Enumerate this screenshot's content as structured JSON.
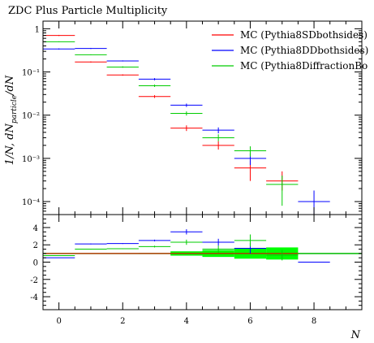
{
  "chart_data": {
    "type": "step-histogram-with-ratio",
    "title": "ZDC Plus Particle Multiplicity",
    "xlabel": "N",
    "ylabel": "1/N, dN_{particle}/dN",
    "ylabel_parts": {
      "main": "1/N, dN",
      "sub": "particle",
      "tail": "/dN"
    },
    "xlim": [
      -0.5,
      9.5
    ],
    "upper": {
      "yscale": "log",
      "ylim": [
        5e-05,
        1.5
      ],
      "yticks": [
        {
          "value": 1,
          "label": "1"
        },
        {
          "value": 0.1,
          "label": "10⁻¹"
        },
        {
          "value": 0.01,
          "label": "10⁻²"
        },
        {
          "value": 0.001,
          "label": "10⁻³"
        },
        {
          "value": 0.0001,
          "label": "10⁻⁴"
        }
      ]
    },
    "lower": {
      "yscale": "linear",
      "ylim": [
        -5.5,
        5.5
      ],
      "yticks": [
        {
          "value": 4,
          "label": "4"
        },
        {
          "value": 2,
          "label": "2"
        },
        {
          "value": 0,
          "label": "0"
        },
        {
          "value": -2,
          "label": "-2"
        },
        {
          "value": -4,
          "label": "-4"
        }
      ],
      "reference": 1,
      "band_color": "#00ff00",
      "band": [
        {
          "x0": -0.5,
          "x1": 0.5,
          "lo": 0.98,
          "hi": 1.02
        },
        {
          "x0": 0.5,
          "x1": 1.5,
          "lo": 0.98,
          "hi": 1.02
        },
        {
          "x0": 1.5,
          "x1": 2.5,
          "lo": 0.97,
          "hi": 1.03
        },
        {
          "x0": 2.5,
          "x1": 3.5,
          "lo": 0.95,
          "hi": 1.05
        },
        {
          "x0": 3.5,
          "x1": 4.5,
          "lo": 0.75,
          "hi": 1.25
        },
        {
          "x0": 4.5,
          "x1": 5.5,
          "lo": 0.6,
          "hi": 1.4
        },
        {
          "x0": 5.5,
          "x1": 6.5,
          "lo": 0.4,
          "hi": 1.6
        },
        {
          "x0": 6.5,
          "x1": 7.5,
          "lo": 0.3,
          "hi": 1.7
        }
      ]
    },
    "xticks": [
      {
        "value": 0,
        "label": "0"
      },
      {
        "value": 2,
        "label": "2"
      },
      {
        "value": 4,
        "label": "4"
      },
      {
        "value": 6,
        "label": "6"
      },
      {
        "value": 8,
        "label": "8"
      }
    ],
    "legend_position": "top-right",
    "series": [
      {
        "name": "MC (Pythia8SDbothsides)",
        "color": "#ff0000",
        "bins": [
          {
            "x0": -0.5,
            "x1": 0.5,
            "y": 0.7,
            "ylo": 0.68,
            "yhi": 0.72,
            "r": 1.0,
            "rlo": 1.0,
            "rhi": 1.0
          },
          {
            "x0": 0.5,
            "x1": 1.5,
            "y": 0.17,
            "ylo": 0.165,
            "yhi": 0.175,
            "r": 1.0,
            "rlo": 1.0,
            "rhi": 1.0
          },
          {
            "x0": 1.5,
            "x1": 2.5,
            "y": 0.085,
            "ylo": 0.082,
            "yhi": 0.088,
            "r": 1.0,
            "rlo": 1.0,
            "rhi": 1.0
          },
          {
            "x0": 2.5,
            "x1": 3.5,
            "y": 0.027,
            "ylo": 0.025,
            "yhi": 0.029,
            "r": 1.0,
            "rlo": 1.0,
            "rhi": 1.0
          },
          {
            "x0": 3.5,
            "x1": 4.5,
            "y": 0.005,
            "ylo": 0.0043,
            "yhi": 0.0058,
            "r": 1.0,
            "rlo": 1.0,
            "rhi": 1.0
          },
          {
            "x0": 4.5,
            "x1": 5.5,
            "y": 0.002,
            "ylo": 0.0016,
            "yhi": 0.0025,
            "r": 1.0,
            "rlo": 1.0,
            "rhi": 1.0
          },
          {
            "x0": 5.5,
            "x1": 6.5,
            "y": 0.0006,
            "ylo": 0.0003,
            "yhi": 0.0009,
            "r": 1.0,
            "rlo": 1.0,
            "rhi": 1.0
          },
          {
            "x0": 6.5,
            "x1": 7.5,
            "y": 0.0003,
            "ylo": 0.00018,
            "yhi": 0.0005,
            "r": 1.0,
            "rlo": 1.0,
            "rhi": 1.0
          }
        ]
      },
      {
        "name": "MC (Pythia8DDbothsides)",
        "color": "#0000ff",
        "bins": [
          {
            "x0": -0.5,
            "x1": 0.5,
            "y": 0.34,
            "ylo": 0.33,
            "yhi": 0.35,
            "r": 0.5,
            "rlo": 0.48,
            "rhi": 0.52
          },
          {
            "x0": 0.5,
            "x1": 1.5,
            "y": 0.35,
            "ylo": 0.34,
            "yhi": 0.36,
            "r": 2.1,
            "rlo": 2.05,
            "rhi": 2.15
          },
          {
            "x0": 1.5,
            "x1": 2.5,
            "y": 0.18,
            "ylo": 0.175,
            "yhi": 0.185,
            "r": 2.15,
            "rlo": 2.1,
            "rhi": 2.2
          },
          {
            "x0": 2.5,
            "x1": 3.5,
            "y": 0.068,
            "ylo": 0.064,
            "yhi": 0.072,
            "r": 2.5,
            "rlo": 2.4,
            "rhi": 2.6
          },
          {
            "x0": 3.5,
            "x1": 4.5,
            "y": 0.017,
            "ylo": 0.0155,
            "yhi": 0.0185,
            "r": 3.5,
            "rlo": 3.2,
            "rhi": 3.8
          },
          {
            "x0": 4.5,
            "x1": 5.5,
            "y": 0.0045,
            "ylo": 0.0038,
            "yhi": 0.0052,
            "r": 2.3,
            "rlo": 1.9,
            "rhi": 2.7
          },
          {
            "x0": 5.5,
            "x1": 6.5,
            "y": 0.001,
            "ylo": 0.0007,
            "yhi": 0.0013,
            "r": 1.6,
            "rlo": 1.0,
            "rhi": 2.2
          },
          {
            "x0": 7.5,
            "x1": 8.5,
            "y": 0.0001,
            "ylo": 4e-05,
            "yhi": 0.00018,
            "r": 0.0,
            "rlo": 0.0,
            "rhi": 0.0
          }
        ]
      },
      {
        "name": "MC (Pythia8DiffractionBo",
        "color": "#00cc00",
        "bins": [
          {
            "x0": -0.5,
            "x1": 0.5,
            "y": 0.5,
            "ylo": 0.49,
            "yhi": 0.51,
            "r": 0.75,
            "rlo": 0.72,
            "rhi": 0.78
          },
          {
            "x0": 0.5,
            "x1": 1.5,
            "y": 0.25,
            "ylo": 0.245,
            "yhi": 0.255,
            "r": 1.5,
            "rlo": 1.45,
            "rhi": 1.55
          },
          {
            "x0": 1.5,
            "x1": 2.5,
            "y": 0.13,
            "ylo": 0.125,
            "yhi": 0.135,
            "r": 1.55,
            "rlo": 1.5,
            "rhi": 1.6
          },
          {
            "x0": 2.5,
            "x1": 3.5,
            "y": 0.048,
            "ylo": 0.045,
            "yhi": 0.051,
            "r": 1.8,
            "rlo": 1.7,
            "rhi": 1.9
          },
          {
            "x0": 3.5,
            "x1": 4.5,
            "y": 0.011,
            "ylo": 0.0098,
            "yhi": 0.0122,
            "r": 2.3,
            "rlo": 2.0,
            "rhi": 2.6
          },
          {
            "x0": 4.5,
            "x1": 5.5,
            "y": 0.003,
            "ylo": 0.0025,
            "yhi": 0.0036,
            "r": 1.5,
            "rlo": 1.1,
            "rhi": 1.9
          },
          {
            "x0": 5.5,
            "x1": 6.5,
            "y": 0.0015,
            "ylo": 0.0011,
            "yhi": 0.0019,
            "r": 2.5,
            "rlo": 1.8,
            "rhi": 3.2
          },
          {
            "x0": 6.5,
            "x1": 7.5,
            "y": 0.00025,
            "ylo": 8e-05,
            "yhi": 0.0004,
            "r": 0.8,
            "rlo": 0.2,
            "rhi": 1.4
          }
        ]
      }
    ]
  }
}
